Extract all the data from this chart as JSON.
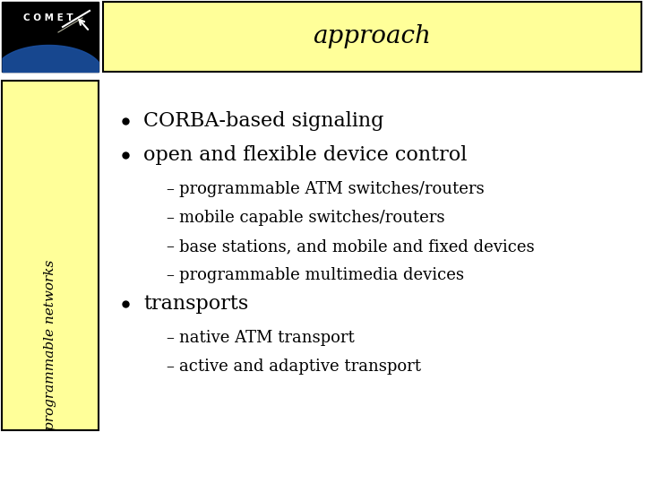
{
  "title": "approach",
  "title_bg": "#ffff99",
  "slide_bg": "#ffffff",
  "sidebar_bg": "#ffff99",
  "sidebar_text": "programmable networks",
  "sidebar_border": "#000000",
  "title_border": "#000000",
  "bullet_color": "#000000",
  "bullets": [
    {
      "level": 0,
      "text": "CORBA-based signaling"
    },
    {
      "level": 0,
      "text": "open and flexible device control"
    },
    {
      "level": 1,
      "text": "programmable ATM switches/routers"
    },
    {
      "level": 1,
      "text": "mobile capable switches/routers"
    },
    {
      "level": 1,
      "text": "base stations, and mobile and fixed devices"
    },
    {
      "level": 1,
      "text": "programmable multimedia devices"
    },
    {
      "level": 0,
      "text": "transports"
    },
    {
      "level": 1,
      "text": "native ATM transport"
    },
    {
      "level": 1,
      "text": "active and adaptive transport"
    }
  ],
  "comet_bg": "#000000",
  "comet_text": "C O M E T",
  "title_fontsize": 20,
  "sidebar_fontsize": 11,
  "bullet0_fontsize": 16,
  "bullet1_fontsize": 13
}
